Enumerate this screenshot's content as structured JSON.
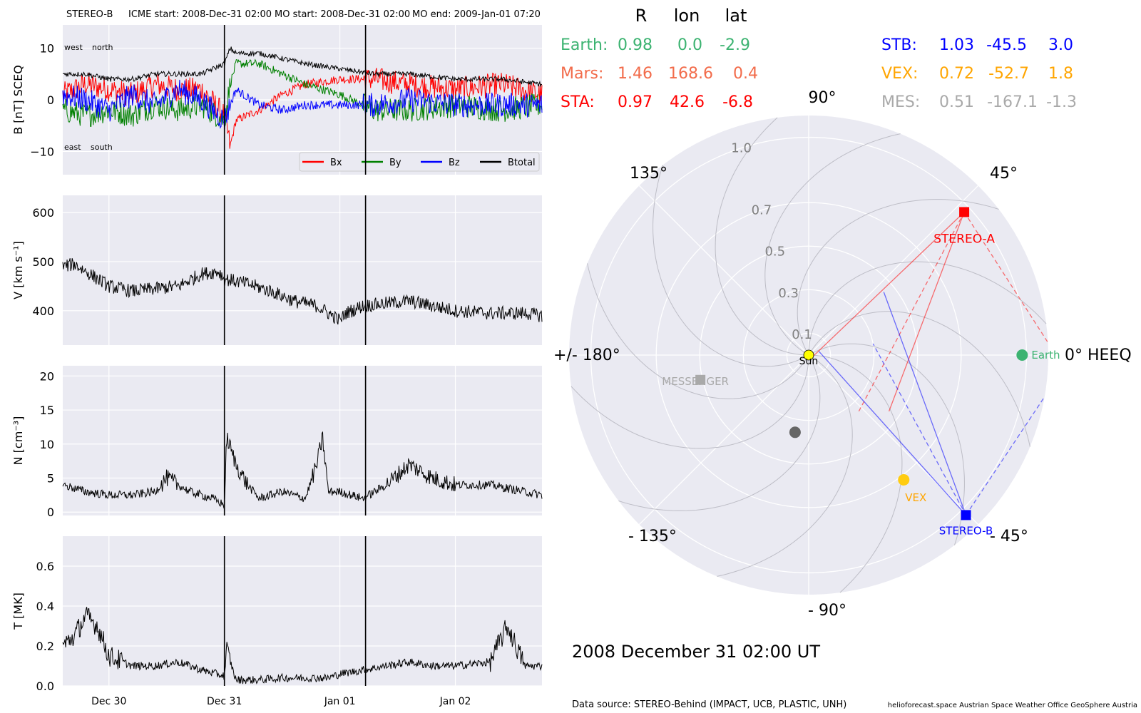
{
  "header": {
    "spacecraft": "STEREO-B",
    "icme_start": "ICME start: 2008-Dec-31 02:00",
    "mo_start": "MO start: 2008-Dec-31 02:00",
    "mo_end": "MO end: 2009-Jan-01 07:20"
  },
  "colors": {
    "panel_bg": "#eaeaf2",
    "grid": "#ffffff",
    "bx": "#ff0000",
    "by": "#008000",
    "bz": "#0000ff",
    "btotal": "#000000",
    "earth": "#3cb371",
    "mars": "#f26b4a",
    "sta": "#ff0000",
    "stb": "#0000ff",
    "vex": "#ffa500",
    "mes": "#a9a9a9"
  },
  "timeseries": {
    "x_ticks": [
      "Dec 30",
      "Dec 31",
      "Jan 01",
      "Jan 02"
    ],
    "event_markers": [
      "2008-Dec-31 02:00",
      "2009-Jan-01 07:20"
    ],
    "mag_annotations": {
      "west": "west",
      "north": "north",
      "east": "east",
      "south": "south"
    },
    "legend": [
      "Bx",
      "By",
      "Bz",
      "Btotal"
    ]
  },
  "chart_data": [
    {
      "type": "line",
      "ylabel": "B [nT] SCEQ",
      "ylim": [
        -14.5,
        14.5
      ],
      "yticks": [
        "10",
        "0",
        "−10"
      ],
      "ytick_values": [
        10,
        0,
        -10
      ],
      "x_range_days": [
        -1.4,
        2.75
      ],
      "x_tick_positions_days": [
        -1,
        0,
        1,
        2
      ],
      "series": [
        {
          "name": "Bx",
          "x": [
            -1.4,
            -1.2,
            -1.0,
            -0.8,
            -0.6,
            -0.4,
            -0.2,
            0.0,
            0.05,
            0.1,
            0.3,
            0.5,
            0.7,
            1.0,
            1.3,
            1.6,
            2.0,
            2.4,
            2.75
          ],
          "y": [
            1,
            3,
            2,
            1,
            3,
            2,
            2,
            -3,
            -9,
            -4,
            -2,
            1,
            3,
            4,
            4,
            3,
            2,
            3,
            1
          ]
        },
        {
          "name": "By",
          "x": [
            -1.4,
            -1.2,
            -1.0,
            -0.8,
            -0.6,
            -0.4,
            -0.2,
            0.0,
            0.05,
            0.1,
            0.3,
            0.5,
            0.7,
            1.0,
            1.3,
            1.6,
            2.0,
            2.4,
            2.75
          ],
          "y": [
            -2,
            -3,
            -2,
            -3,
            -1,
            -2,
            -1,
            -4,
            3,
            7,
            7,
            5,
            3,
            1,
            -2,
            -2,
            -1,
            -2,
            -1
          ]
        },
        {
          "name": "Bz",
          "x": [
            -1.4,
            -1.2,
            -1.0,
            -0.8,
            -0.6,
            -0.4,
            -0.2,
            0.0,
            0.05,
            0.1,
            0.3,
            0.5,
            0.7,
            1.0,
            1.3,
            1.6,
            2.0,
            2.4,
            2.75
          ],
          "y": [
            1,
            0,
            -2,
            1,
            -1,
            2,
            0,
            -4,
            -1,
            2,
            -1,
            -2,
            -1,
            -1,
            -1,
            0,
            -1,
            -1,
            -1
          ]
        },
        {
          "name": "Btotal",
          "x": [
            -1.4,
            -1.2,
            -1.0,
            -0.8,
            -0.6,
            -0.4,
            -0.2,
            0.0,
            0.05,
            0.1,
            0.3,
            0.5,
            0.7,
            1.0,
            1.3,
            1.6,
            2.0,
            2.4,
            2.75
          ],
          "y": [
            5,
            5,
            4,
            4,
            5,
            5,
            5,
            7,
            10,
            9,
            9,
            8,
            7,
            6,
            5,
            5,
            4,
            4,
            3
          ]
        }
      ]
    },
    {
      "type": "line",
      "ylabel": "V [km s⁻¹]",
      "ylim": [
        330,
        635
      ],
      "yticks": [
        "600",
        "500",
        "400"
      ],
      "ytick_values": [
        600,
        500,
        400
      ],
      "series": [
        {
          "name": "V",
          "x": [
            -1.4,
            -1.3,
            -1.2,
            -1.0,
            -0.8,
            -0.6,
            -0.4,
            -0.2,
            -0.05,
            0.0,
            0.2,
            0.4,
            0.6,
            0.8,
            1.0,
            1.05,
            1.2,
            1.4,
            1.6,
            1.8,
            2.0,
            2.3,
            2.6,
            2.75
          ],
          "y": [
            490,
            495,
            480,
            450,
            440,
            445,
            450,
            475,
            480,
            465,
            455,
            440,
            420,
            410,
            380,
            395,
            410,
            415,
            420,
            410,
            400,
            395,
            395,
            390
          ]
        }
      ]
    },
    {
      "type": "line",
      "ylabel": "N [cm⁻³]",
      "ylim": [
        -0.5,
        21.5
      ],
      "yticks": [
        "20",
        "15",
        "10",
        "5",
        "0"
      ],
      "ytick_values": [
        20,
        15,
        10,
        5,
        0
      ],
      "series": [
        {
          "name": "N",
          "x": [
            -1.4,
            -1.2,
            -1.0,
            -0.8,
            -0.6,
            -0.5,
            -0.3,
            -0.1,
            0.0,
            0.02,
            0.1,
            0.2,
            0.3,
            0.5,
            0.7,
            0.8,
            0.85,
            0.9,
            1.0,
            1.2,
            1.3,
            1.4,
            1.6,
            1.8,
            2.0,
            2.3,
            2.6,
            2.75
          ],
          "y": [
            4,
            3,
            2.5,
            2.5,
            3,
            5,
            3,
            2,
            1,
            11,
            7,
            4,
            2,
            3,
            2,
            7,
            11,
            3,
            3,
            2,
            3,
            4,
            7,
            5,
            4,
            4,
            3,
            2.5
          ]
        }
      ]
    },
    {
      "type": "line",
      "ylabel": "T [MK]",
      "ylim": [
        0,
        0.75
      ],
      "yticks": [
        "0.6",
        "0.4",
        "0.2",
        "0.0"
      ],
      "ytick_values": [
        0.6,
        0.4,
        0.2,
        0.0
      ],
      "series": [
        {
          "name": "T",
          "x": [
            -1.4,
            -1.3,
            -1.2,
            -1.1,
            -1.0,
            -0.8,
            -0.6,
            -0.4,
            -0.2,
            0.0,
            0.02,
            0.1,
            0.3,
            0.5,
            0.7,
            0.9,
            1.0,
            1.2,
            1.4,
            1.6,
            1.8,
            2.0,
            2.3,
            2.45,
            2.6,
            2.75
          ],
          "y": [
            0.2,
            0.25,
            0.35,
            0.3,
            0.15,
            0.1,
            0.1,
            0.12,
            0.08,
            0.05,
            0.18,
            0.03,
            0.03,
            0.04,
            0.04,
            0.04,
            0.06,
            0.08,
            0.1,
            0.12,
            0.1,
            0.1,
            0.12,
            0.3,
            0.1,
            0.1
          ]
        }
      ]
    },
    {
      "type": "scatter",
      "polar": true,
      "radial_ticks": [
        "0.1",
        "0.3",
        "0.5",
        "0.7",
        "1.0"
      ],
      "radial_tick_values": [
        0.1,
        0.3,
        0.5,
        0.7,
        1.0
      ],
      "r_max": 1.1,
      "angle_labels": {
        "a0": "0° HEEQ",
        "a45": "45°",
        "a90": "90°",
        "a135": "135°",
        "a180": "+/- 180°",
        "am135": "- 135°",
        "am90": "- 90°",
        "am45": "- 45°"
      },
      "points": [
        {
          "name": "Sun",
          "r": 0.0,
          "lon": 0.0,
          "label": "Sun"
        },
        {
          "name": "Earth",
          "r": 0.98,
          "lon": 0.0,
          "label": "Earth"
        },
        {
          "name": "STEREO-A",
          "r": 0.97,
          "lon": 42.6,
          "label": "STEREO-A"
        },
        {
          "name": "STEREO-B",
          "r": 1.03,
          "lon": -45.5,
          "label": "STEREO-B"
        },
        {
          "name": "VEX",
          "r": 0.72,
          "lon": -52.7,
          "label": "VEX"
        },
        {
          "name": "MESSENGER",
          "r": 0.51,
          "lon": -167.1,
          "label": "MESSENGER"
        },
        {
          "name": "Mercury",
          "r": 0.36,
          "lon": -100.0,
          "label": ""
        }
      ]
    }
  ],
  "position_table": {
    "headers": [
      "R",
      "lon",
      "lat"
    ],
    "rows": [
      {
        "name": "Earth:",
        "r": "0.98",
        "lon": "0.0",
        "lat": "-2.9"
      },
      {
        "name": "Mars:",
        "r": "1.46",
        "lon": "168.6",
        "lat": "0.4"
      },
      {
        "name": "STA:",
        "r": "0.97",
        "lon": "42.6",
        "lat": "-6.8"
      },
      {
        "name": "STB:",
        "r": "1.03",
        "lon": "-45.5",
        "lat": "3.0"
      },
      {
        "name": "VEX:",
        "r": "0.72",
        "lon": "-52.7",
        "lat": "1.8"
      },
      {
        "name": "MES:",
        "r": "0.51",
        "lon": "-167.1",
        "lat": "-1.3"
      }
    ]
  },
  "date_label": "2008 December 31  02:00 UT",
  "footer": {
    "source": "Data source: STEREO-Behind (IMPACT, UCB, PLASTIC, UNH)",
    "credits": "helioforecast.space   Austrian Space Weather Office   GeoSphere Austria"
  }
}
